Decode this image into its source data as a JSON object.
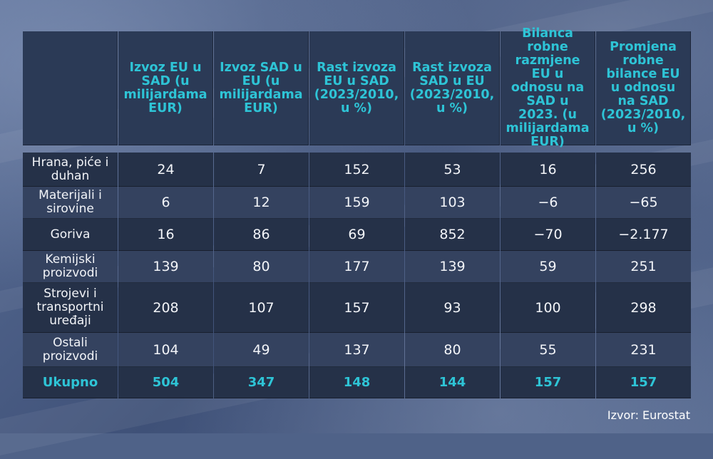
{
  "columns": [
    "",
    "Izvoz EU u SAD (u milijardama EUR)",
    "Izvoz SAD u EU (u milijardama EUR)",
    "Rast izvoza EU u SAD (2023/2010, u %)",
    "Rast izvoza SAD u EU (2023/2010, u %)",
    "Bilanca robne razmjene EU u odnosu na SAD u 2023. (u milijardama EUR)",
    "Promjena robne bilance EU u odnosu na SAD (2023/2010, u %)"
  ],
  "rows": [
    [
      "Hrana, piće i duhan",
      "24",
      "7",
      "152",
      "53",
      "16",
      "256"
    ],
    [
      "Materijali i sirovine",
      "6",
      "12",
      "159",
      "103",
      "−6",
      "−65"
    ],
    [
      "Goriva",
      "16",
      "86",
      "69",
      "852",
      "−70",
      "−2.177"
    ],
    [
      "Kemijski proizvodi",
      "139",
      "80",
      "177",
      "139",
      "59",
      "251"
    ],
    [
      "Strojevi i transportni uređaji",
      "208",
      "107",
      "157",
      "93",
      "100",
      "298"
    ],
    [
      "Ostali proizvodi",
      "104",
      "49",
      "137",
      "80",
      "55",
      "231"
    ]
  ],
  "total": [
    "Ukupno",
    "504",
    "347",
    "148",
    "144",
    "157",
    "157"
  ],
  "source": "Izvor: Eurostat",
  "colors": {
    "accent": "#2ec4d6",
    "header_bg": "#2b3a56",
    "row_dark": "#253148",
    "row_light": "#34425f"
  }
}
